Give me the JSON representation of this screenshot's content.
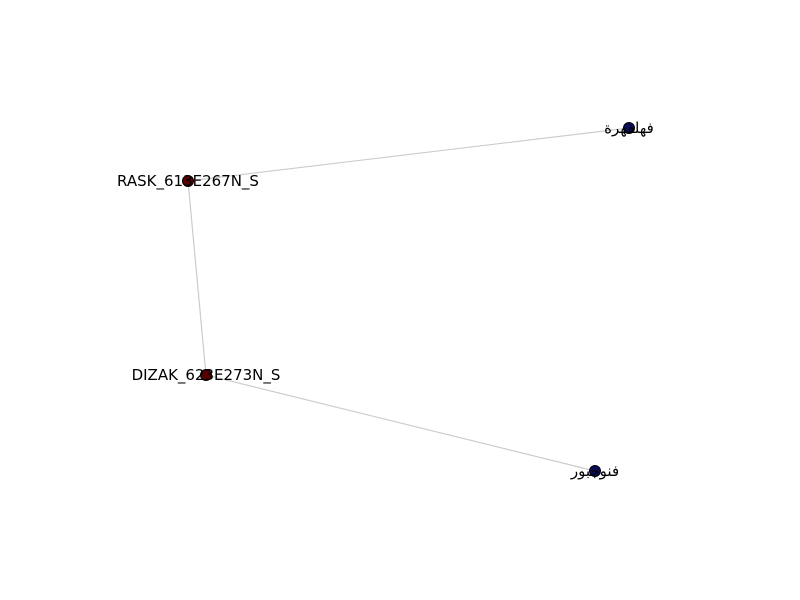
{
  "graph": {
    "nodes": [
      {
        "id": "rask",
        "label": "RASK_613E267N_S",
        "group": "site",
        "color": "#5a0000"
      },
      {
        "id": "dizak",
        "label": "DIZAK_623E273N_S",
        "group": "site",
        "color": "#5a0000"
      },
      {
        "id": "fahlfahra",
        "label": "فهلفهرة",
        "group": "village",
        "color": "#0b0b5a"
      },
      {
        "id": "fanooj",
        "label": "فنوجبور",
        "group": "village",
        "color": "#0b0b5a"
      }
    ],
    "edges": [
      {
        "source": "rask",
        "target": "fahlfahra"
      },
      {
        "source": "rask",
        "target": "dizak"
      },
      {
        "source": "dizak",
        "target": "fanooj"
      }
    ],
    "edge_color": "#cccccc"
  }
}
